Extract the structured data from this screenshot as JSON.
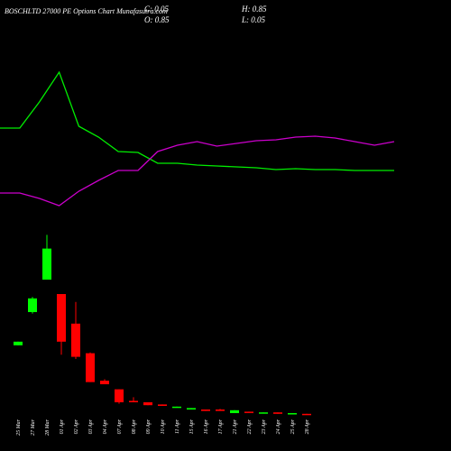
{
  "chart_data": {
    "type": "candlestick",
    "title": "BOSCHLTD 27000 PE Options Chart Munafasutra.com",
    "annotations": [
      "C: 0.05",
      "H: 0.85",
      "O: 0.85",
      "L: 0.05"
    ],
    "categories": [
      "25 Mar",
      "27 Mar",
      "28 Mar",
      "01 Apr",
      "02 Apr",
      "03 Apr",
      "04 Apr",
      "07 Apr",
      "08 Apr",
      "09 Apr",
      "10 Apr",
      "11 Apr",
      "15 Apr",
      "16 Apr",
      "17 Apr",
      "21 Apr",
      "22 Apr",
      "23 Apr",
      "24 Apr",
      "25 Apr",
      "28 Apr"
    ],
    "open": [
      99,
      145,
      190,
      170,
      129,
      88,
      50,
      38,
      22,
      20,
      17,
      13,
      10,
      10,
      10,
      5,
      7,
      5,
      6,
      4,
      4
    ],
    "close": [
      104,
      164,
      233,
      104,
      83,
      48,
      45,
      20,
      20,
      16,
      15,
      14,
      12,
      8,
      8,
      9,
      6,
      6,
      4,
      5,
      3
    ],
    "high": [
      104,
      166,
      252,
      170,
      159,
      89,
      52,
      38,
      27,
      20,
      17,
      14,
      12,
      10,
      11,
      9,
      7,
      6,
      6,
      5,
      4
    ],
    "low": [
      99,
      143,
      190,
      86,
      80,
      48,
      45,
      18,
      20,
      16,
      15,
      13,
      10,
      8,
      8,
      5,
      6,
      5,
      4,
      4,
      3
    ],
    "up_color": "#00ff00",
    "down_color": "#ff0000",
    "ylim": [
      0,
      250
    ],
    "y2lim": [
      0,
      100
    ],
    "lines": [
      {
        "color": "#00ee00",
        "axis": "y2",
        "values": [
          59,
          59,
          73.5,
          90,
          60,
          54,
          46,
          45.5,
          39.5,
          39.5,
          38.5,
          38,
          37.5,
          37,
          36,
          36.5,
          36,
          36,
          35.5,
          35.5,
          35.5
        ]
      },
      {
        "color": "#cc00cc",
        "axis": "y2",
        "values": [
          23,
          23,
          20,
          16,
          24,
          30,
          35.5,
          35.5,
          46,
          49.5,
          51.5,
          49,
          50.5,
          52,
          52.5,
          54,
          54.5,
          53.5,
          51.5,
          49.5,
          51.5
        ]
      }
    ]
  }
}
